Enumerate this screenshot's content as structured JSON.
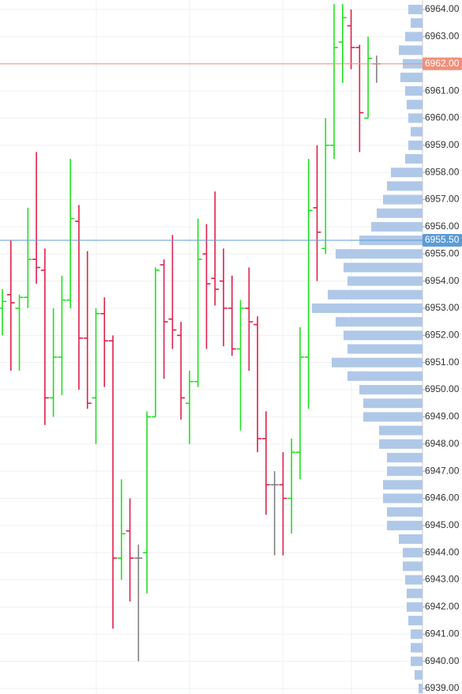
{
  "chart_data": {
    "type": "ohlc",
    "ylim": [
      6939,
      6964.25
    ],
    "yticks": [
      {
        "value": 6939,
        "label": "6939.00"
      },
      {
        "value": 6940,
        "label": "6940.00"
      },
      {
        "value": 6941,
        "label": "6941.00"
      },
      {
        "value": 6942,
        "label": "6942.00"
      },
      {
        "value": 6943,
        "label": "6943.00"
      },
      {
        "value": 6944,
        "label": "6944.00"
      },
      {
        "value": 6945,
        "label": "6945.00"
      },
      {
        "value": 6946,
        "label": "6946.00"
      },
      {
        "value": 6947,
        "label": "6947.00"
      },
      {
        "value": 6948,
        "label": "6948.00"
      },
      {
        "value": 6949,
        "label": "6949.00"
      },
      {
        "value": 6950,
        "label": "6950.00"
      },
      {
        "value": 6951,
        "label": "6951.00"
      },
      {
        "value": 6952,
        "label": "6952.00"
      },
      {
        "value": 6953,
        "label": "6953.00"
      },
      {
        "value": 6954,
        "label": "6954.00"
      },
      {
        "value": 6955,
        "label": "6955.00"
      },
      {
        "value": 6956,
        "label": "6956.00"
      },
      {
        "value": 6957,
        "label": "6957.00"
      },
      {
        "value": 6958,
        "label": "6958.00"
      },
      {
        "value": 6959,
        "label": "6959.00"
      },
      {
        "value": 6960,
        "label": "6960.00"
      },
      {
        "value": 6961,
        "label": "6961.00"
      },
      {
        "value": 6962,
        "label": "6962.00"
      },
      {
        "value": 6963,
        "label": "6963.00"
      },
      {
        "value": 6964,
        "label": "6964.00"
      }
    ],
    "grid": true,
    "up_color": "#22e022",
    "down_color": "#e0204a",
    "flat_color": "#808080",
    "open": [
      6953,
      6953.5,
      6953,
      6953.4,
      6954.8,
      6954.4,
      6949.7,
      6951.2,
      6953.3,
      6956.2,
      6951.9,
      6949.7,
      6952.8,
      6951.8,
      6943.8,
      6944.8,
      6943.8,
      6944,
      6949,
      6954.6,
      6952.6,
      6952,
      6949.5,
      6950.3,
      6955,
      6954.1,
      6954,
      6953,
      6951.5,
      6953,
      6952.4,
      6948.2,
      6946.5,
      6946.5,
      6946,
      6947.7,
      6951.2,
      6956.7,
      6955.2,
      6959,
      6962.8,
      6963.4,
      6962.6,
      6960,
      6962
    ],
    "high": [
      6953.7,
      6955.5,
      6953.5,
      6956.7,
      6958.75,
      6955.2,
      6953,
      6954.2,
      6958.5,
      6956.8,
      6955.1,
      6953,
      6953.4,
      6952,
      6946.7,
      6946,
      6944.3,
      6949.2,
      6954.5,
      6954.8,
      6955.7,
      6952.5,
      6950.7,
      6956.3,
      6956.1,
      6957.3,
      6955.2,
      6954.2,
      6953.3,
      6954.5,
      6952.7,
      6949.2,
      6947,
      6947.7,
      6948.2,
      6952.3,
      6958.5,
      6959,
      6960,
      6964.2,
      6964.2,
      6964,
      6962.7,
      6963,
      6962.3
    ],
    "low": [
      6952,
      6950.7,
      6950.7,
      6953,
      6953.9,
      6948.7,
      6949,
      6949.8,
      6953,
      6950,
      6949.3,
      6948,
      6950.1,
      6941.2,
      6943,
      6942.2,
      6940,
      6942.5,
      6949,
      6950.4,
      6951.5,
      6948.9,
      6948,
      6950.1,
      6951.5,
      6953.1,
      6951.6,
      6951.25,
      6948.5,
      6950.7,
      6947.7,
      6945.4,
      6943.9,
      6943.9,
      6944.7,
      6946.7,
      6949.3,
      6954,
      6955,
      6958.5,
      6961.3,
      6961.8,
      6958.75,
      6960,
      6961.3
    ],
    "close": [
      6953.25,
      6953.2,
      6953.4,
      6954.8,
      6954.5,
      6949.7,
      6951.2,
      6953.3,
      6956.3,
      6951.9,
      6949.5,
      6952.8,
      6951.8,
      6943.8,
      6944.7,
      6943.8,
      6943.8,
      6949,
      6954.4,
      6952.5,
      6952.2,
      6949.7,
      6950.3,
      6954.8,
      6953.9,
      6953.7,
      6953,
      6951.5,
      6953,
      6952.5,
      6948.2,
      6946.5,
      6946.5,
      6946,
      6947.7,
      6951.2,
      6956.6,
      6955.8,
      6959,
      6962.6,
      6963.7,
      6962.6,
      6960.2,
      6962.2,
      6962
    ],
    "profile": {
      "color": "#b0c8e8",
      "prices": [
        6964,
        6963.5,
        6963,
        6962.5,
        6962,
        6961.5,
        6961,
        6960.5,
        6960,
        6959.5,
        6959,
        6958.5,
        6958,
        6957.5,
        6957,
        6956.5,
        6956,
        6955.5,
        6955,
        6954.5,
        6954,
        6953.5,
        6953,
        6952.5,
        6952,
        6951.5,
        6951,
        6950.5,
        6950,
        6949.5,
        6949,
        6948.5,
        6948,
        6947.5,
        6947,
        6946.5,
        6946,
        6945.5,
        6945,
        6944.5,
        6944,
        6943.5,
        6943,
        6942.5,
        6942,
        6941.5,
        6941,
        6940.5,
        6940,
        6939.5,
        6939
      ],
      "volumes": [
        18,
        15,
        22,
        30,
        25,
        28,
        22,
        20,
        18,
        15,
        18,
        22,
        40,
        45,
        50,
        58,
        65,
        80,
        110,
        100,
        95,
        120,
        140,
        110,
        100,
        95,
        115,
        95,
        80,
        75,
        75,
        55,
        55,
        45,
        45,
        50,
        50,
        45,
        45,
        30,
        25,
        25,
        22,
        20,
        20,
        18,
        15,
        15,
        15,
        10,
        5
      ]
    },
    "price_lines": [
      {
        "value": 6962,
        "label": "6962.00",
        "color": "#f0907a"
      },
      {
        "value": 6955.5,
        "label": "6955.50",
        "color": "#5b9bd5"
      }
    ]
  }
}
